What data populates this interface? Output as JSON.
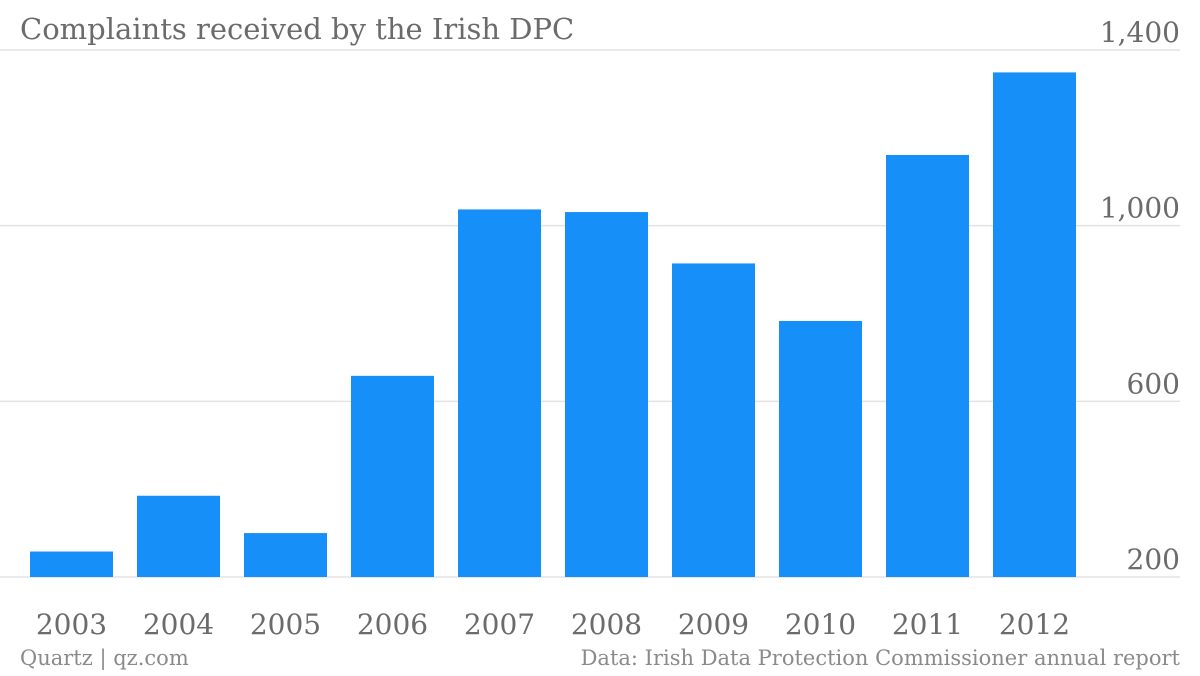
{
  "chart_data": {
    "type": "bar",
    "title": "Complaints received by the Irish DPC",
    "categories": [
      "2003",
      "2004",
      "2005",
      "2006",
      "2007",
      "2008",
      "2009",
      "2010",
      "2011",
      "2012"
    ],
    "values": [
      258,
      385,
      300,
      658,
      1037,
      1031,
      914,
      783,
      1161,
      1349
    ],
    "xlabel": "",
    "ylabel": "",
    "ylim": [
      200,
      1400
    ],
    "yticks": [
      200,
      600,
      1000,
      1400
    ],
    "ytick_labels": [
      "200",
      "600",
      "1,000",
      "1,400"
    ],
    "y_axis_side": "right",
    "grid": true,
    "legend": "none",
    "bar_color": "#168ff8"
  },
  "footer": {
    "credit": "Quartz | qz.com",
    "source": "Data: Irish Data Protection Commissioner annual report"
  }
}
